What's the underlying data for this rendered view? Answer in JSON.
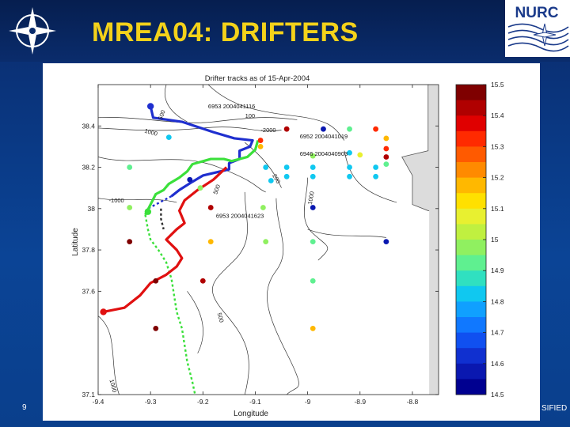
{
  "slide": {
    "title": "MREA04: DRIFTERS",
    "page_number": "9",
    "footer_text": "SIFIED",
    "logo_right_text": "NURC",
    "colors": {
      "title": "#f4d21a",
      "background": "#0a3a86",
      "header": "#061e4f"
    }
  },
  "chart_data": {
    "type": "scatter",
    "title": "Drifter tracks as of 15-Apr-2004",
    "xlabel": "Longitude",
    "ylabel": "Latitude",
    "xlim": [
      -9.4,
      -8.75
    ],
    "ylim": [
      37.1,
      38.6
    ],
    "x_ticks": [
      "-9.4",
      "-9.3",
      "-9.2",
      "-9.1",
      "-9",
      "-8.9",
      "-8.8"
    ],
    "x_tick_values": [
      -9.4,
      -9.3,
      -9.2,
      -9.1,
      -9.0,
      -8.9,
      -8.8
    ],
    "y_ticks": [
      "37.1",
      "37.6",
      "37.8",
      "38",
      "38.2",
      "38.4"
    ],
    "y_tick_values": [
      37.1,
      37.6,
      37.8,
      38.0,
      38.2,
      38.4
    ],
    "colorbar": {
      "min": 14.5,
      "max": 15.5,
      "ticks": [
        "15.5",
        "15.4",
        "15.3",
        "15.2",
        "15.1",
        "15",
        "14.9",
        "14.8",
        "14.7",
        "14.6",
        "14.5"
      ],
      "colors": [
        "#7f0000",
        "#b00000",
        "#e00000",
        "#ff2a00",
        "#ff5a00",
        "#ff8a00",
        "#ffb800",
        "#ffe000",
        "#e8f030",
        "#c0f040",
        "#90f060",
        "#5ff090",
        "#30e0c0",
        "#10c8f0",
        "#10a0ff",
        "#1078ff",
        "#1050f0",
        "#1030d0",
        "#0a18b0",
        "#000090"
      ]
    },
    "drifter_labels": [
      {
        "text": "6953 2004041116",
        "lon": -9.19,
        "lat": 38.485
      },
      {
        "text": "6952 2004041019",
        "lon": -9.015,
        "lat": 38.34
      },
      {
        "text": "6946 2004040903",
        "lon": -9.015,
        "lat": 38.255
      },
      {
        "text": "6953 2004041623",
        "lon": -9.175,
        "lat": 37.955
      }
    ],
    "contour_labels": [
      {
        "text": "500",
        "lon": -9.275,
        "lat": 38.45,
        "rot": -70
      },
      {
        "text": "100",
        "lon": -9.11,
        "lat": 38.44,
        "rot": 0
      },
      {
        "text": "-2000",
        "lon": -9.075,
        "lat": 38.37,
        "rot": 0
      },
      {
        "text": "1000",
        "lon": -9.3,
        "lat": 38.36,
        "rot": 15
      },
      {
        "text": "200",
        "lon": -9.063,
        "lat": 38.14,
        "rot": 60
      },
      {
        "text": "500",
        "lon": -9.17,
        "lat": 38.09,
        "rot": -70
      },
      {
        "text": "1000",
        "lon": -8.99,
        "lat": 38.05,
        "rot": -80
      },
      {
        "text": "-1000",
        "lon": -9.365,
        "lat": 38.03,
        "rot": 0
      },
      {
        "text": "500",
        "lon": -9.17,
        "lat": 37.47,
        "rot": 75
      },
      {
        "text": "1000",
        "lon": -9.375,
        "lat": 37.14,
        "rot": 75
      }
    ],
    "series": [
      {
        "name": "blue track",
        "color": "#1f2fcf",
        "points": [
          [
            -9.3,
            38.495
          ],
          [
            -9.295,
            38.44
          ],
          [
            -9.24,
            38.42
          ],
          [
            -9.18,
            38.37
          ],
          [
            -9.14,
            38.34
          ],
          [
            -9.105,
            38.33
          ],
          [
            -9.11,
            38.3
          ],
          [
            -9.13,
            38.28
          ],
          [
            -9.13,
            38.24
          ],
          [
            -9.15,
            38.22
          ],
          [
            -9.15,
            38.19
          ],
          [
            -9.2,
            38.16
          ],
          [
            -9.22,
            38.13
          ],
          [
            -9.245,
            38.09
          ],
          [
            -9.26,
            38.06
          ]
        ]
      },
      {
        "name": "green track",
        "color": "#3be03b",
        "points": [
          [
            -9.095,
            38.33
          ],
          [
            -9.1,
            38.285
          ],
          [
            -9.115,
            38.25
          ],
          [
            -9.145,
            38.23
          ],
          [
            -9.16,
            38.24
          ],
          [
            -9.185,
            38.24
          ],
          [
            -9.22,
            38.215
          ],
          [
            -9.23,
            38.18
          ],
          [
            -9.245,
            38.15
          ],
          [
            -9.265,
            38.12
          ],
          [
            -9.275,
            38.09
          ],
          [
            -9.29,
            38.07
          ],
          [
            -9.3,
            38.02
          ],
          [
            -9.31,
            37.97
          ]
        ]
      },
      {
        "name": "red track",
        "color": "#e01010",
        "points": [
          [
            -9.155,
            38.2
          ],
          [
            -9.18,
            38.14
          ],
          [
            -9.21,
            38.09
          ],
          [
            -9.235,
            38.04
          ],
          [
            -9.245,
            37.99
          ],
          [
            -9.235,
            37.93
          ],
          [
            -9.25,
            37.9
          ],
          [
            -9.27,
            37.85
          ],
          [
            -9.25,
            37.8
          ],
          [
            -9.24,
            37.76
          ],
          [
            -9.25,
            37.72
          ],
          [
            -9.27,
            37.68
          ],
          [
            -9.3,
            37.64
          ],
          [
            -9.32,
            37.58
          ],
          [
            -9.35,
            37.52
          ],
          [
            -9.39,
            37.5
          ]
        ]
      }
    ],
    "dashed_tracks": [
      {
        "color": "#1f2fcf",
        "points": [
          [
            -9.26,
            38.06
          ],
          [
            -9.275,
            38.04
          ],
          [
            -9.29,
            38.02
          ],
          [
            -9.305,
            38.0
          ]
        ]
      },
      {
        "color": "#3be03b",
        "points": [
          [
            -9.31,
            37.97
          ],
          [
            -9.305,
            37.9
          ],
          [
            -9.3,
            37.85
          ],
          [
            -9.285,
            37.8
          ],
          [
            -9.27,
            37.74
          ],
          [
            -9.26,
            37.66
          ],
          [
            -9.255,
            37.58
          ],
          [
            -9.25,
            37.5
          ],
          [
            -9.24,
            37.42
          ],
          [
            -9.235,
            37.34
          ],
          [
            -9.23,
            37.26
          ],
          [
            -9.22,
            37.16
          ],
          [
            -9.215,
            37.1
          ]
        ]
      },
      {
        "color": "#303030",
        "points": [
          [
            -9.28,
            38.0
          ],
          [
            -9.28,
            37.95
          ],
          [
            -9.275,
            37.9
          ]
        ]
      }
    ],
    "moorings": [
      {
        "lon": -9.04,
        "lat": 38.385,
        "value": 15.4
      },
      {
        "lon": -8.97,
        "lat": 38.385,
        "value": 14.6
      },
      {
        "lon": -8.92,
        "lat": 38.385,
        "value": 14.9
      },
      {
        "lon": -8.87,
        "lat": 38.385,
        "value": 15.3
      },
      {
        "lon": -8.85,
        "lat": 38.34,
        "value": 15.2
      },
      {
        "lon": -8.85,
        "lat": 38.29,
        "value": 15.3
      },
      {
        "lon": -8.85,
        "lat": 38.25,
        "value": 15.4
      },
      {
        "lon": -8.85,
        "lat": 38.215,
        "value": 14.9
      },
      {
        "lon": -9.09,
        "lat": 38.33,
        "value": 15.3
      },
      {
        "lon": -9.09,
        "lat": 38.3,
        "value": 15.2
      },
      {
        "lon": -8.99,
        "lat": 38.255,
        "value": 15.0
      },
      {
        "lon": -8.92,
        "lat": 38.27,
        "value": 14.8
      },
      {
        "lon": -8.9,
        "lat": 38.26,
        "value": 15.1
      },
      {
        "lon": -9.08,
        "lat": 38.2,
        "value": 14.8
      },
      {
        "lon": -9.04,
        "lat": 38.2,
        "value": 14.8
      },
      {
        "lon": -8.99,
        "lat": 38.2,
        "value": 14.8
      },
      {
        "lon": -8.92,
        "lat": 38.2,
        "value": 14.8
      },
      {
        "lon": -8.87,
        "lat": 38.2,
        "value": 14.8
      },
      {
        "lon": -9.07,
        "lat": 38.135,
        "value": 14.8
      },
      {
        "lon": -9.04,
        "lat": 38.155,
        "value": 14.8
      },
      {
        "lon": -8.99,
        "lat": 38.155,
        "value": 14.8
      },
      {
        "lon": -8.92,
        "lat": 38.155,
        "value": 14.8
      },
      {
        "lon": -8.87,
        "lat": 38.155,
        "value": 14.8
      },
      {
        "lon": -9.265,
        "lat": 38.345,
        "value": 14.8
      },
      {
        "lon": -9.34,
        "lat": 38.2,
        "value": 14.9
      },
      {
        "lon": -9.225,
        "lat": 38.14,
        "value": 14.6
      },
      {
        "lon": -9.205,
        "lat": 38.1,
        "value": 15.0
      },
      {
        "lon": -9.34,
        "lat": 38.005,
        "value": 15.0
      },
      {
        "lon": -9.185,
        "lat": 38.005,
        "value": 15.4
      },
      {
        "lon": -9.085,
        "lat": 38.005,
        "value": 15.0
      },
      {
        "lon": -8.99,
        "lat": 38.005,
        "value": 14.6
      },
      {
        "lon": -9.34,
        "lat": 37.84,
        "value": 15.5
      },
      {
        "lon": -9.185,
        "lat": 37.84,
        "value": 15.2
      },
      {
        "lon": -9.08,
        "lat": 37.84,
        "value": 15.0
      },
      {
        "lon": -8.99,
        "lat": 37.84,
        "value": 14.9
      },
      {
        "lon": -8.85,
        "lat": 37.84,
        "value": 14.6
      },
      {
        "lon": -9.2,
        "lat": 37.65,
        "value": 15.4
      },
      {
        "lon": -9.29,
        "lat": 37.65,
        "value": 15.5
      },
      {
        "lon": -8.99,
        "lat": 37.65,
        "value": 14.9
      },
      {
        "lon": -9.29,
        "lat": 37.42,
        "value": 15.5
      },
      {
        "lon": -8.99,
        "lat": 37.42,
        "value": 15.2
      }
    ],
    "bullets": [
      {
        "lon": -9.3,
        "lat": 38.495,
        "color": "#1f2fcf"
      },
      {
        "lon": -9.305,
        "lat": 37.985,
        "color": "#3be03b"
      },
      {
        "lon": -9.39,
        "lat": 37.5,
        "color": "#e01010"
      }
    ],
    "grid": false,
    "legend": "colorbar-right"
  }
}
